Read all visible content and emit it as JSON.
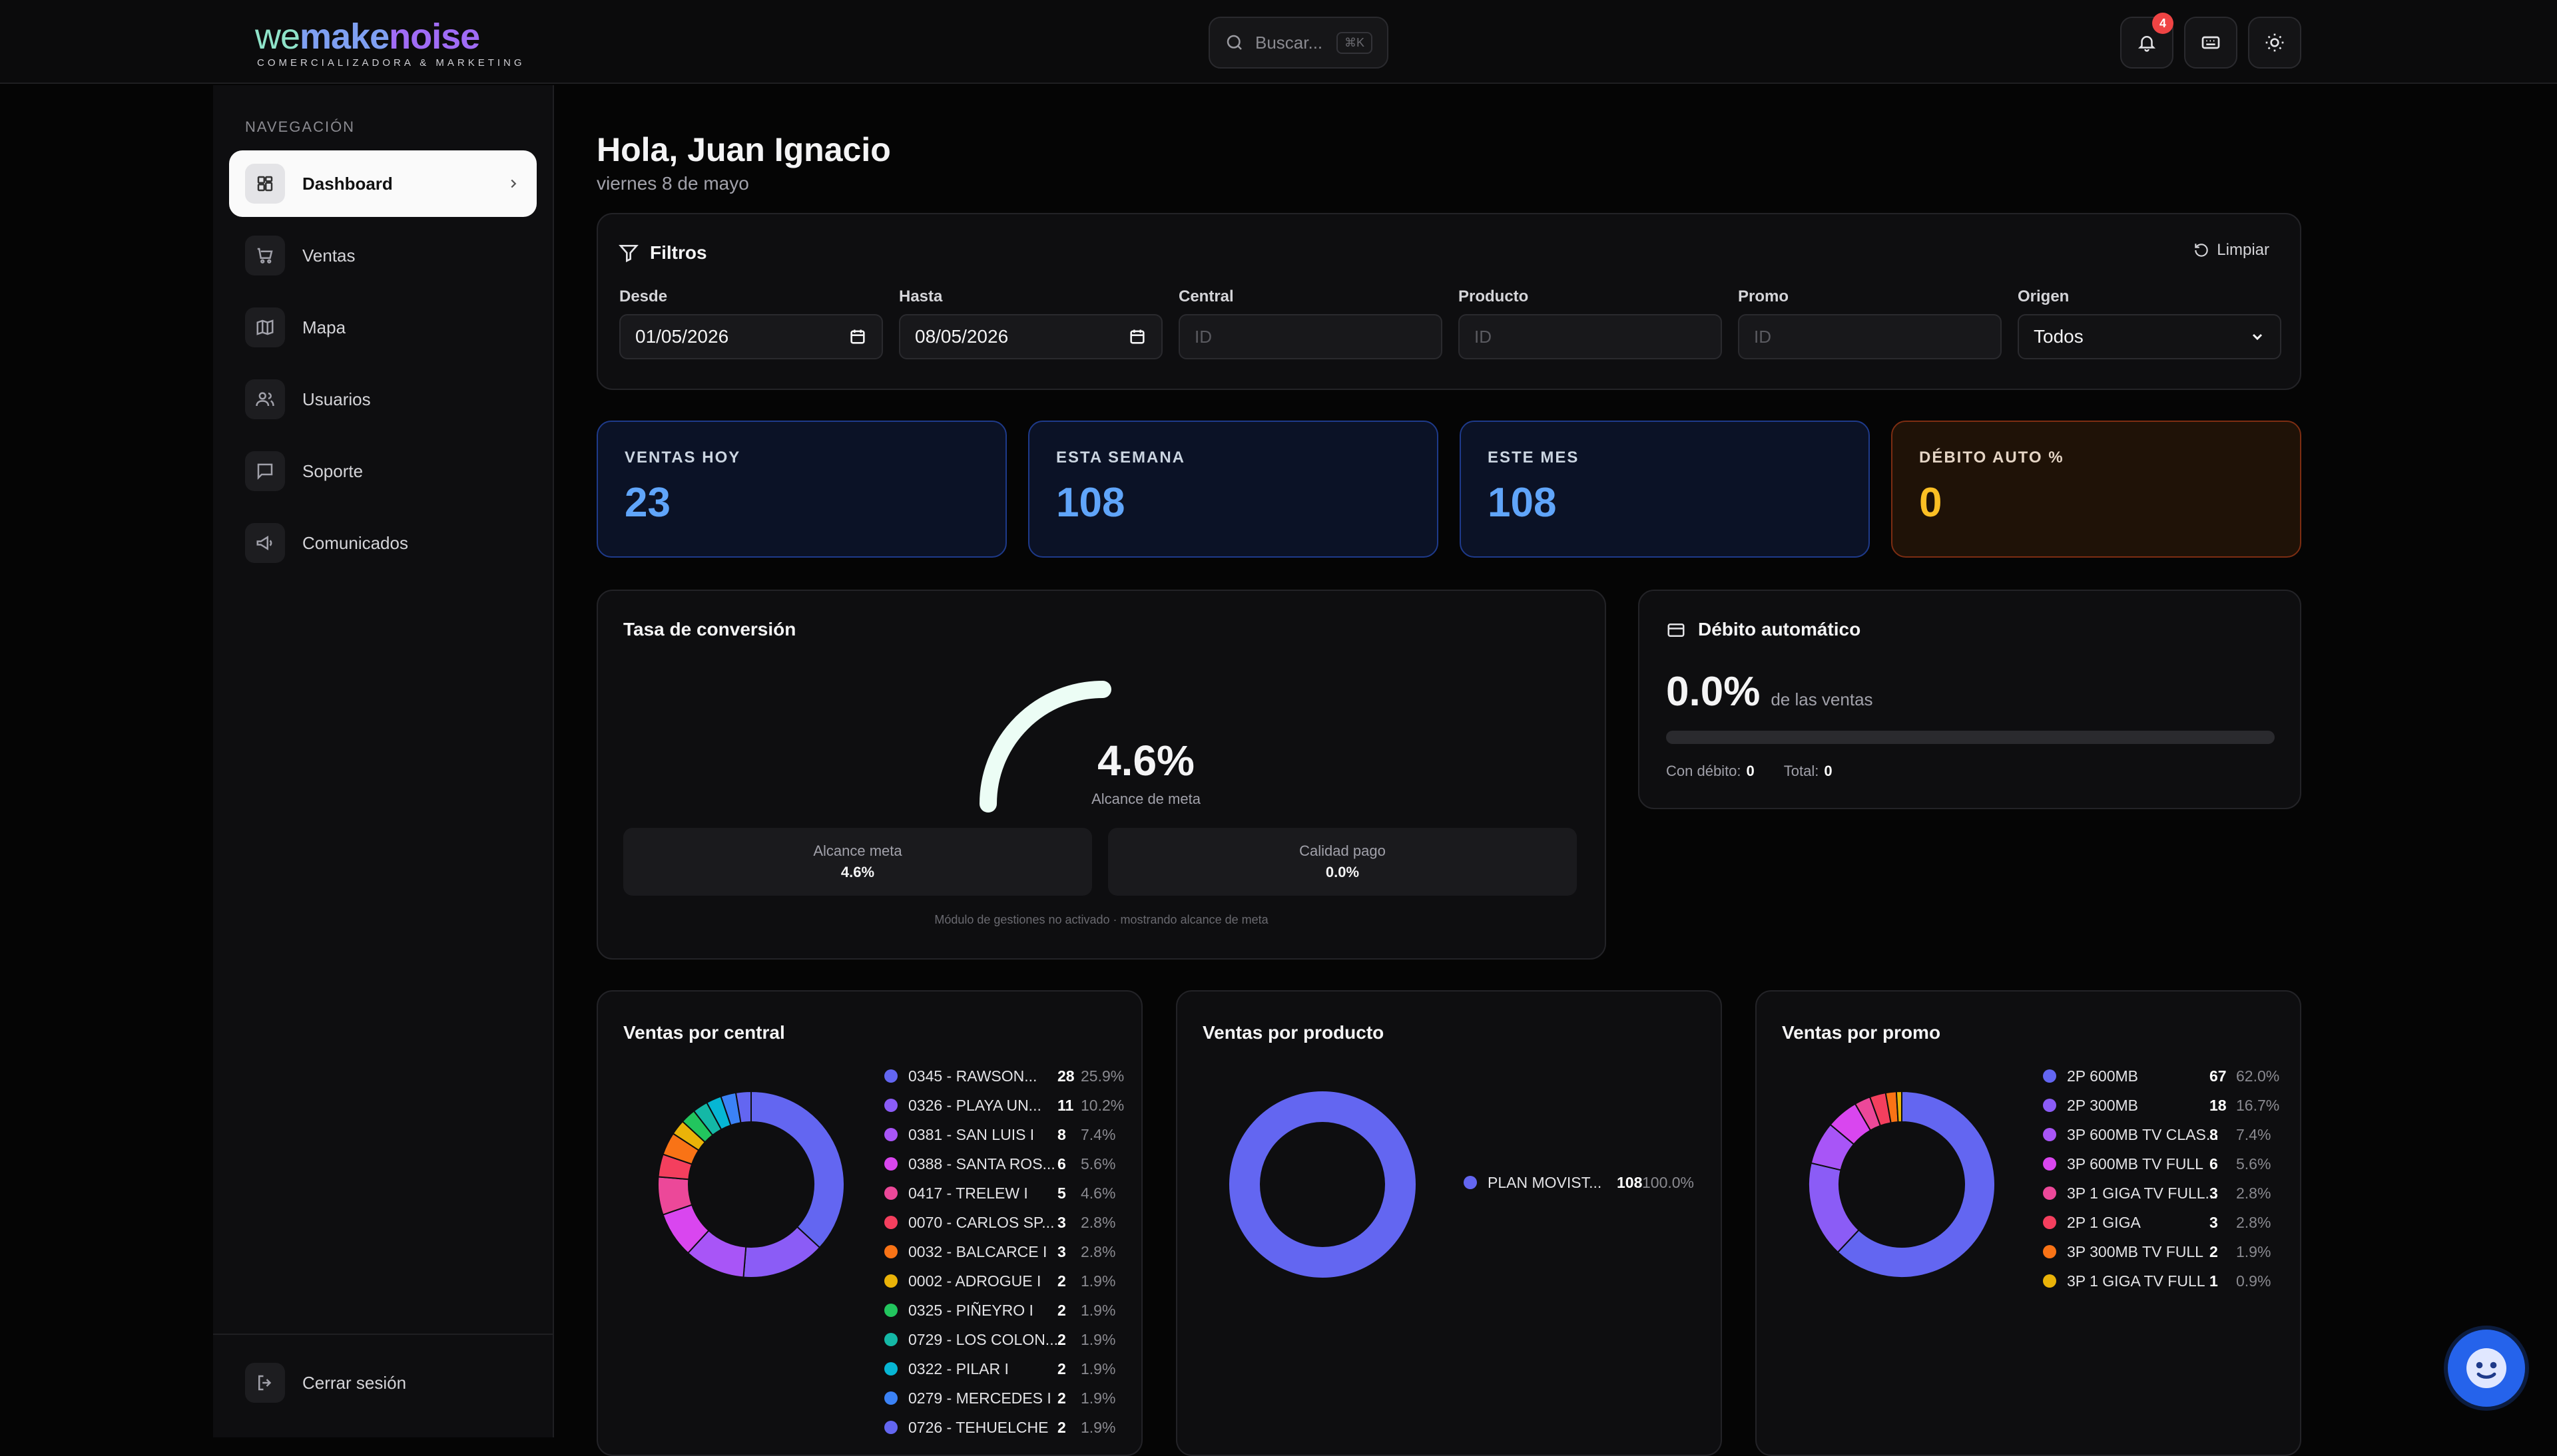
{
  "brand": {
    "part1": "we",
    "part2": "make",
    "part3": "noise",
    "tagline": "COMERCIALIZADORA & MARKETING"
  },
  "header": {
    "search_placeholder": "Buscar...",
    "search_shortcut": "⌘K",
    "notification_count": "4"
  },
  "sidebar": {
    "heading": "NAVEGACIÓN",
    "items": [
      {
        "label": "Dashboard",
        "icon": "dashboard-icon"
      },
      {
        "label": "Ventas",
        "icon": "cart-icon"
      },
      {
        "label": "Mapa",
        "icon": "map-icon"
      },
      {
        "label": "Usuarios",
        "icon": "users-icon"
      },
      {
        "label": "Soporte",
        "icon": "chat-icon"
      },
      {
        "label": "Comunicados",
        "icon": "megaphone-icon"
      }
    ],
    "logout": "Cerrar sesión"
  },
  "greeting": {
    "title": "Hola, Juan Ignacio",
    "date": "viernes 8 de mayo"
  },
  "filters": {
    "title": "Filtros",
    "clear": "Limpiar",
    "fields": [
      {
        "label": "Desde",
        "value": "01/05/2026"
      },
      {
        "label": "Hasta",
        "value": "08/05/2026"
      },
      {
        "label": "Central",
        "placeholder": "ID"
      },
      {
        "label": "Producto",
        "placeholder": "ID"
      },
      {
        "label": "Promo",
        "placeholder": "ID"
      },
      {
        "label": "Origen",
        "value": "Todos"
      }
    ]
  },
  "kpis": [
    {
      "label": "VENTAS HOY",
      "value": "23"
    },
    {
      "label": "ESTA SEMANA",
      "value": "108"
    },
    {
      "label": "ESTE MES",
      "value": "108"
    },
    {
      "label": "DÉBITO AUTO %",
      "value": "0"
    }
  ],
  "conversion": {
    "title": "Tasa de conversión",
    "value": "4.6%",
    "caption": "Alcance de meta",
    "gauge_fraction": 0.046,
    "stats": [
      {
        "label": "Alcance meta",
        "value": "4.6%"
      },
      {
        "label": "Calidad pago",
        "value": "0.0%"
      }
    ],
    "note": "Módulo de gestiones no activado · mostrando alcance de meta"
  },
  "debito": {
    "title": "Débito automático",
    "value": "0.0%",
    "suffix": "de las ventas",
    "bar_fraction": 0,
    "con_label": "Con débito:",
    "con_value": "0",
    "total_label": "Total:",
    "total_value": "0"
  },
  "chart_data": [
    {
      "type": "pie",
      "title": "Ventas por central",
      "labels": [
        "0345 - RAWSON...",
        "0326 - PLAYA UN...",
        "0381 - SAN LUIS I",
        "0388 - SANTA ROS...",
        "0417 - TRELEW I",
        "0070 - CARLOS SP...",
        "0032 - BALCARCE I",
        "0002 - ADROGUE I",
        "0325 - PIÑEYRO I",
        "0729 - LOS COLON...",
        "0322 - PILAR I",
        "0279 - MERCEDES I",
        "0726 - TEHUELCHE"
      ],
      "values": [
        28,
        11,
        8,
        6,
        5,
        3,
        3,
        2,
        2,
        2,
        2,
        2,
        2
      ],
      "percents": [
        "25.9%",
        "10.2%",
        "7.4%",
        "5.6%",
        "4.6%",
        "2.8%",
        "2.8%",
        "1.9%",
        "1.9%",
        "1.9%",
        "1.9%",
        "1.9%",
        "1.9%"
      ],
      "colors": [
        "#6366f1",
        "#8b5cf6",
        "#a855f7",
        "#d946ef",
        "#ec4899",
        "#f43f5e",
        "#f97316",
        "#eab308",
        "#22c55e",
        "#14b8a6",
        "#06b6d4",
        "#3b82f6",
        "#6366f1"
      ]
    },
    {
      "type": "pie",
      "title": "Ventas por producto",
      "labels": [
        "PLAN MOVIST..."
      ],
      "values": [
        108
      ],
      "percents": [
        "100.0%"
      ],
      "colors": [
        "#6366f1"
      ]
    },
    {
      "type": "pie",
      "title": "Ventas por promo",
      "labels": [
        "2P 600MB",
        "2P 300MB",
        "3P 600MB TV CLAS...",
        "3P 600MB TV FULL",
        "3P 1 GIGA TV FULL...",
        "2P 1 GIGA",
        "3P 300MB TV FULL",
        "3P 1 GIGA TV FULL"
      ],
      "values": [
        67,
        18,
        8,
        6,
        3,
        3,
        2,
        1
      ],
      "percents": [
        "62.0%",
        "16.7%",
        "7.4%",
        "5.6%",
        "2.8%",
        "2.8%",
        "1.9%",
        "0.9%"
      ],
      "colors": [
        "#6366f1",
        "#8b5cf6",
        "#a855f7",
        "#d946ef",
        "#ec4899",
        "#f43f5e",
        "#f97316",
        "#eab308"
      ]
    }
  ]
}
